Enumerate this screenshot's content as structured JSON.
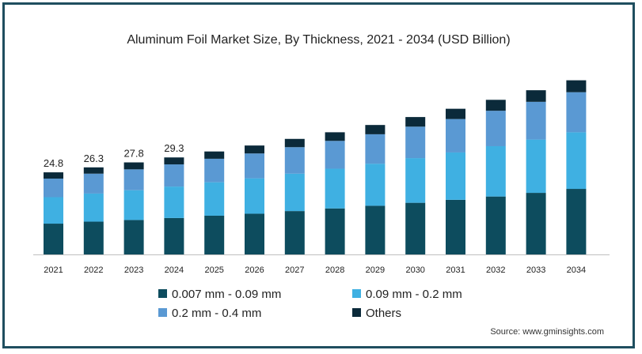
{
  "chart_data": {
    "type": "bar",
    "stacked": true,
    "title": "Aluminum Foil Market Size, By Thickness, 2021 - 2034 (USD Billion)",
    "categories": [
      "2021",
      "2022",
      "2023",
      "2024",
      "2025",
      "2026",
      "2027",
      "2028",
      "2029",
      "2030",
      "2031",
      "2032",
      "2033",
      "2034"
    ],
    "series": [
      {
        "name": "0.007 mm - 0.09 mm",
        "color": "#0d4c5e",
        "values": [
          9.3,
          9.9,
          10.4,
          11.0,
          11.7,
          12.3,
          13.1,
          13.9,
          14.7,
          15.6,
          16.5,
          17.5,
          18.6,
          19.8
        ]
      },
      {
        "name": "0.09 mm - 0.2 mm",
        "color": "#3fb0e2",
        "values": [
          8.0,
          8.5,
          9.0,
          9.5,
          10.1,
          10.7,
          11.3,
          12.0,
          12.7,
          13.5,
          14.3,
          15.2,
          16.1,
          17.1
        ]
      },
      {
        "name": "0.2 mm - 0.4 mm",
        "color": "#5a99d3",
        "values": [
          5.6,
          6.0,
          6.3,
          6.7,
          7.1,
          7.5,
          8.0,
          8.4,
          8.9,
          9.5,
          10.1,
          10.7,
          11.4,
          12.1
        ]
      },
      {
        "name": "Others",
        "color": "#0b2a3a",
        "values": [
          1.9,
          1.9,
          2.1,
          2.1,
          2.2,
          2.4,
          2.5,
          2.6,
          2.8,
          2.9,
          3.1,
          3.3,
          3.5,
          3.6
        ]
      }
    ],
    "data_labels": [
      "24.8",
      "26.3",
      "27.8",
      "29.3"
    ],
    "legend_position": "bottom",
    "grid": false,
    "ylim": [
      0,
      60
    ]
  },
  "source": "Source: www.gminsights.com"
}
